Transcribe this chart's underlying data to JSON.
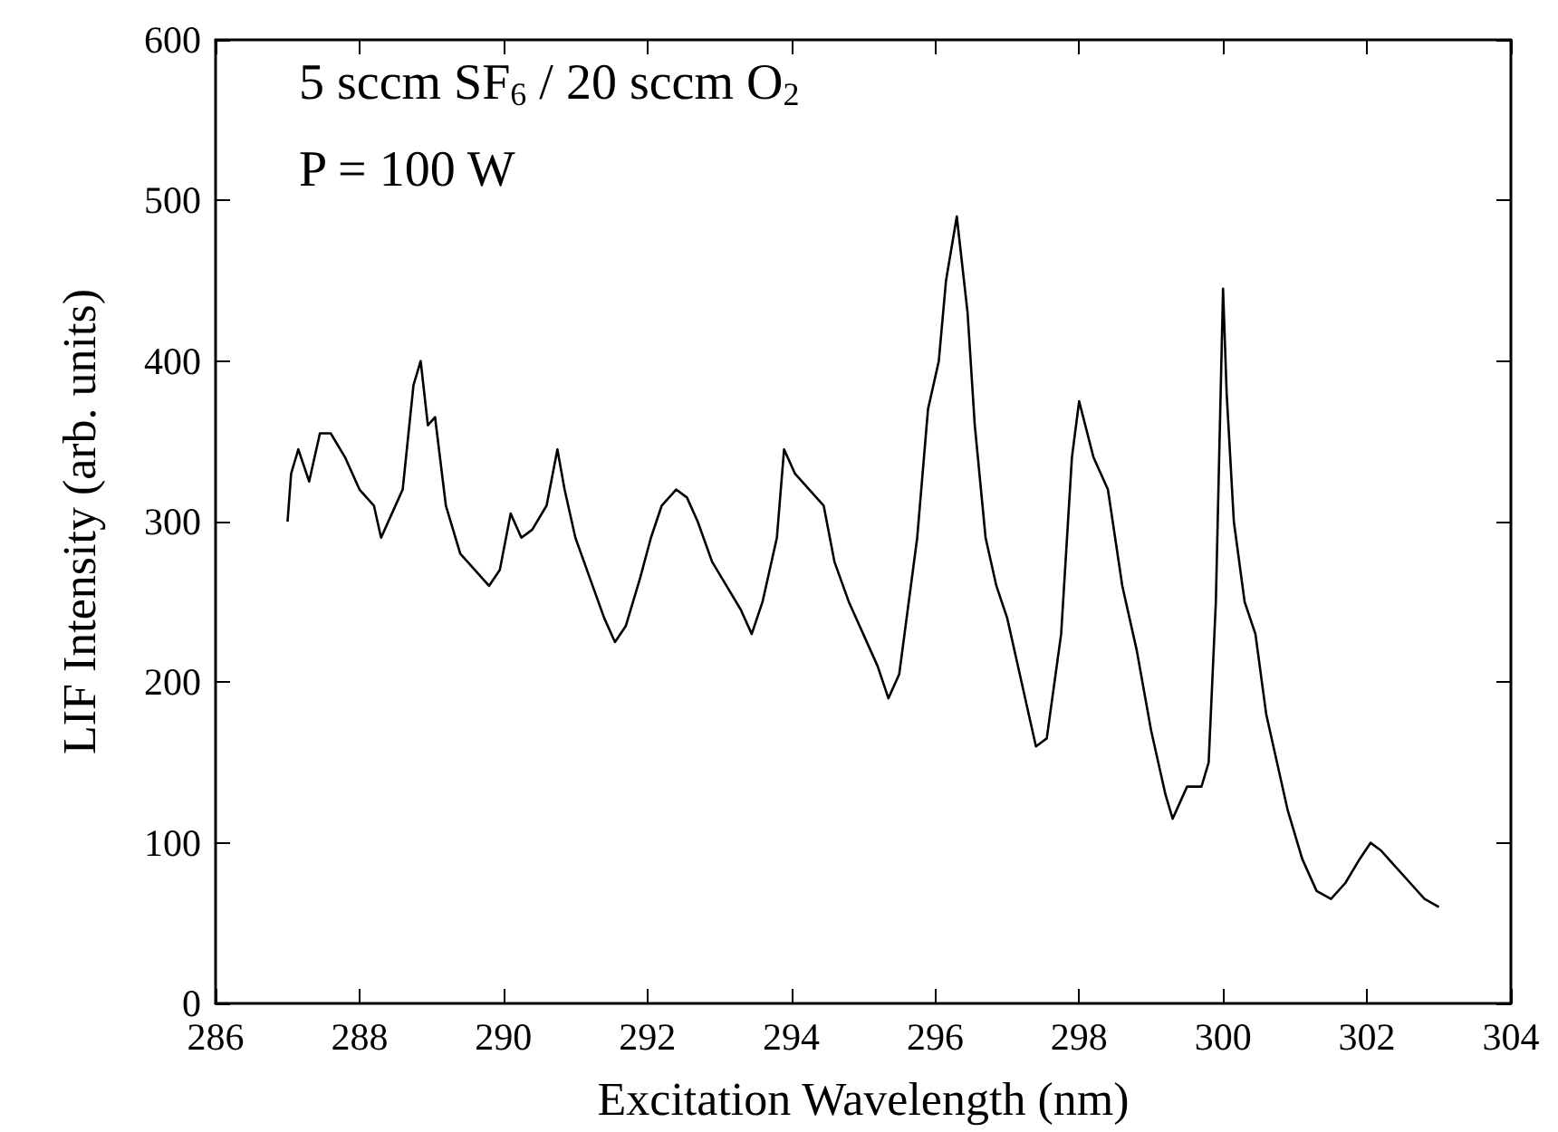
{
  "chart_data": {
    "type": "line",
    "xlabel": "Excitation Wavelength (nm)",
    "ylabel": "LIF Intensity (arb. units)",
    "annotations": [
      "5 sccm SF$_{6}$ / 20 sccm O$_{2}$",
      "P = 100 W"
    ],
    "xlim": [
      286,
      304
    ],
    "xticks": [
      286,
      288,
      290,
      292,
      294,
      296,
      298,
      300,
      302,
      304
    ],
    "ylim": [
      0,
      600
    ],
    "yticks": [
      0,
      100,
      200,
      300,
      400,
      500,
      600
    ],
    "grid": false,
    "marker": "none",
    "line_style": "solid",
    "series": [
      {
        "color": "#000000",
        "x": [
          287.0,
          287.05,
          287.15,
          287.3,
          287.45,
          287.6,
          287.8,
          288.0,
          288.2,
          288.3,
          288.45,
          288.6,
          288.75,
          288.85,
          288.95,
          289.05,
          289.2,
          289.4,
          289.6,
          289.8,
          289.95,
          290.1,
          290.25,
          290.4,
          290.6,
          290.75,
          290.85,
          291.0,
          291.2,
          291.4,
          291.55,
          291.7,
          291.9,
          292.05,
          292.2,
          292.4,
          292.55,
          292.7,
          292.9,
          293.1,
          293.3,
          293.45,
          293.6,
          293.8,
          293.9,
          294.05,
          294.25,
          294.45,
          294.6,
          294.8,
          295.0,
          295.2,
          295.35,
          295.5,
          295.75,
          295.9,
          296.05,
          296.15,
          296.3,
          296.45,
          296.55,
          296.7,
          296.85,
          297.0,
          297.2,
          297.4,
          297.55,
          297.75,
          297.9,
          298.0,
          298.2,
          298.4,
          298.6,
          298.8,
          299.0,
          299.2,
          299.3,
          299.5,
          299.7,
          299.8,
          299.9,
          300.0,
          300.05,
          300.15,
          300.3,
          300.45,
          300.6,
          300.75,
          300.9,
          301.1,
          301.3,
          301.5,
          301.7,
          301.9,
          302.05,
          302.2,
          302.4,
          302.6,
          302.8,
          303.0
        ],
        "values": [
          300,
          330,
          345,
          325,
          355,
          355,
          340,
          320,
          310,
          290,
          305,
          320,
          385,
          400,
          360,
          365,
          310,
          280,
          270,
          260,
          270,
          305,
          290,
          295,
          310,
          345,
          320,
          290,
          265,
          240,
          225,
          235,
          265,
          290,
          310,
          320,
          315,
          300,
          275,
          260,
          245,
          230,
          250,
          290,
          345,
          330,
          320,
          310,
          275,
          250,
          230,
          210,
          190,
          205,
          290,
          370,
          400,
          450,
          490,
          430,
          360,
          290,
          260,
          240,
          200,
          160,
          165,
          230,
          340,
          375,
          340,
          320,
          260,
          220,
          170,
          130,
          115,
          135,
          135,
          150,
          250,
          445,
          380,
          300,
          250,
          230,
          180,
          150,
          120,
          90,
          70,
          65,
          75,
          90,
          100,
          95,
          85,
          75,
          65,
          60
        ]
      }
    ]
  }
}
